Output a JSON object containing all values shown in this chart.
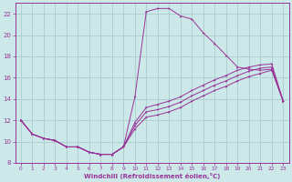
{
  "xlabel": "Windchill (Refroidissement éolien,°C)",
  "bg_color": "#cce8e8",
  "grid_color": "#aacccc",
  "line_color": "#993399",
  "xlim": [
    -0.5,
    23.5
  ],
  "ylim": [
    8,
    23
  ],
  "xticks": [
    0,
    1,
    2,
    3,
    4,
    5,
    6,
    7,
    8,
    9,
    10,
    11,
    12,
    13,
    14,
    15,
    16,
    17,
    18,
    19,
    20,
    21,
    22,
    23
  ],
  "yticks": [
    8,
    10,
    12,
    14,
    16,
    18,
    20,
    22
  ],
  "line1_x": [
    0,
    1,
    2,
    3,
    4,
    5,
    6,
    7,
    8,
    9,
    10,
    11,
    12,
    13,
    14,
    15,
    16,
    17,
    18,
    19,
    20,
    21,
    22,
    23
  ],
  "line1_y": [
    12.0,
    10.7,
    10.3,
    10.1,
    9.5,
    9.5,
    9.0,
    8.8,
    8.8,
    9.5,
    14.2,
    22.2,
    22.5,
    22.5,
    21.8,
    21.5,
    20.2,
    19.2,
    18.1,
    17.0,
    16.8,
    16.7,
    16.8,
    13.8
  ],
  "line2_x": [
    0,
    1,
    2,
    3,
    4,
    5,
    6,
    7,
    8,
    9,
    10,
    11,
    12,
    13,
    14,
    15,
    16,
    17,
    18,
    19,
    20,
    21,
    22,
    23
  ],
  "line2_y": [
    12.0,
    10.7,
    10.3,
    10.1,
    9.5,
    9.5,
    9.0,
    8.8,
    8.8,
    9.5,
    11.8,
    13.2,
    13.5,
    13.8,
    14.2,
    14.8,
    15.3,
    15.8,
    16.2,
    16.7,
    17.0,
    17.2,
    17.3,
    13.8
  ],
  "line3_x": [
    0,
    1,
    2,
    3,
    4,
    5,
    6,
    7,
    8,
    9,
    10,
    11,
    12,
    13,
    14,
    15,
    16,
    17,
    18,
    19,
    20,
    21,
    22,
    23
  ],
  "line3_y": [
    12.0,
    10.7,
    10.3,
    10.1,
    9.5,
    9.5,
    9.0,
    8.8,
    8.8,
    9.5,
    11.5,
    12.8,
    13.0,
    13.3,
    13.7,
    14.3,
    14.8,
    15.3,
    15.7,
    16.2,
    16.6,
    16.9,
    17.0,
    13.8
  ],
  "line4_x": [
    0,
    1,
    2,
    3,
    4,
    5,
    6,
    7,
    8,
    9,
    10,
    11,
    12,
    13,
    14,
    15,
    16,
    17,
    18,
    19,
    20,
    21,
    22,
    23
  ],
  "line4_y": [
    12.0,
    10.7,
    10.3,
    10.1,
    9.5,
    9.5,
    9.0,
    8.8,
    8.8,
    9.5,
    11.2,
    12.3,
    12.5,
    12.8,
    13.2,
    13.8,
    14.3,
    14.8,
    15.2,
    15.7,
    16.1,
    16.4,
    16.7,
    13.8
  ]
}
